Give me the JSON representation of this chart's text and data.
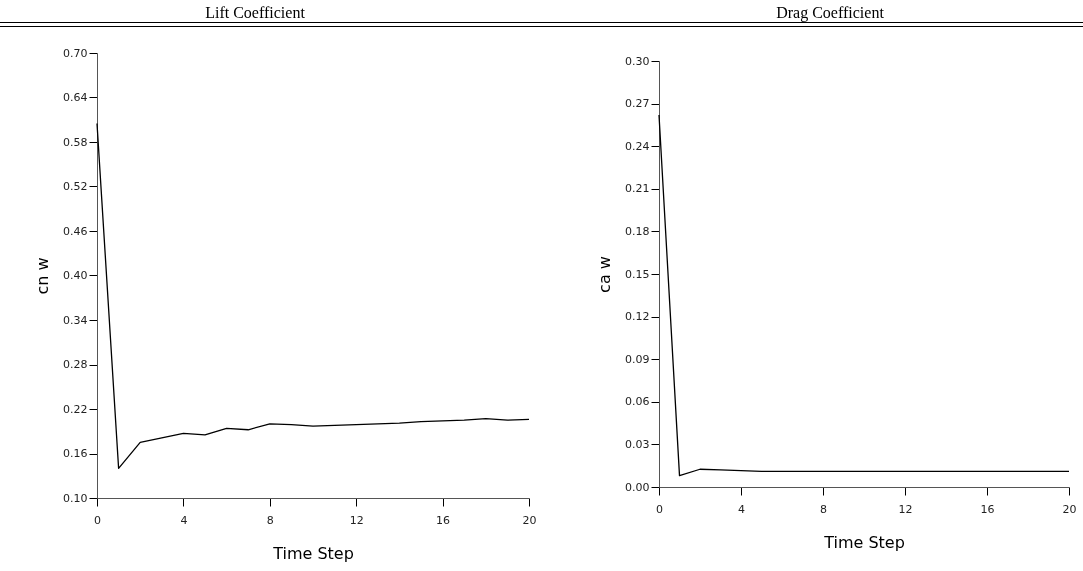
{
  "chart_data": [
    {
      "type": "line",
      "title": "Lift Coefficient",
      "xlabel": "Time Step",
      "ylabel": "cn w",
      "color": "#000000",
      "x": [
        0,
        1,
        2,
        3,
        4,
        5,
        6,
        7,
        8,
        9,
        10,
        11,
        12,
        13,
        14,
        15,
        16,
        17,
        18,
        19,
        20
      ],
      "values": [
        0.605,
        0.14,
        0.175,
        0.181,
        0.187,
        0.185,
        0.194,
        0.192,
        0.2,
        0.199,
        0.197,
        0.198,
        0.199,
        0.2,
        0.201,
        0.203,
        0.204,
        0.205,
        0.207,
        0.205,
        0.206
      ],
      "xlim": [
        0,
        20
      ],
      "xticks": [
        0,
        4,
        8,
        12,
        16,
        20
      ],
      "ylim": [
        0.1,
        0.7
      ],
      "yticks": [
        {
          "value": 0.1,
          "label": "0.10"
        },
        0.16,
        0.22,
        0.28,
        0.34,
        {
          "value": 0.4,
          "label": "0.40"
        },
        0.46,
        0.52,
        0.58,
        0.64,
        {
          "value": 0.7,
          "label": "0.70"
        }
      ]
    },
    {
      "type": "line",
      "title": "Drag Coefficient",
      "xlabel": "Time Step",
      "ylabel": "ca w",
      "color": "#000000",
      "x": [
        0,
        1,
        2,
        3,
        4,
        5,
        6,
        7,
        8,
        9,
        10,
        11,
        12,
        13,
        14,
        15,
        16,
        17,
        18,
        19,
        20
      ],
      "values": [
        0.262,
        0.008,
        0.0125,
        0.012,
        0.0115,
        0.011,
        0.011,
        0.011,
        0.011,
        0.011,
        0.011,
        0.011,
        0.011,
        0.011,
        0.011,
        0.011,
        0.011,
        0.011,
        0.011,
        0.011,
        0.011
      ],
      "xlim": [
        0,
        20
      ],
      "xticks": [
        0,
        4,
        8,
        12,
        16,
        20
      ],
      "ylim": [
        0,
        0.3
      ],
      "yticks": [
        {
          "value": 0,
          "label": "0.00"
        },
        0.03,
        0.06,
        0.09,
        0.12,
        0.15,
        0.18,
        0.21,
        0.24,
        0.27,
        {
          "value": 0.3,
          "label": "0.30"
        }
      ]
    }
  ]
}
